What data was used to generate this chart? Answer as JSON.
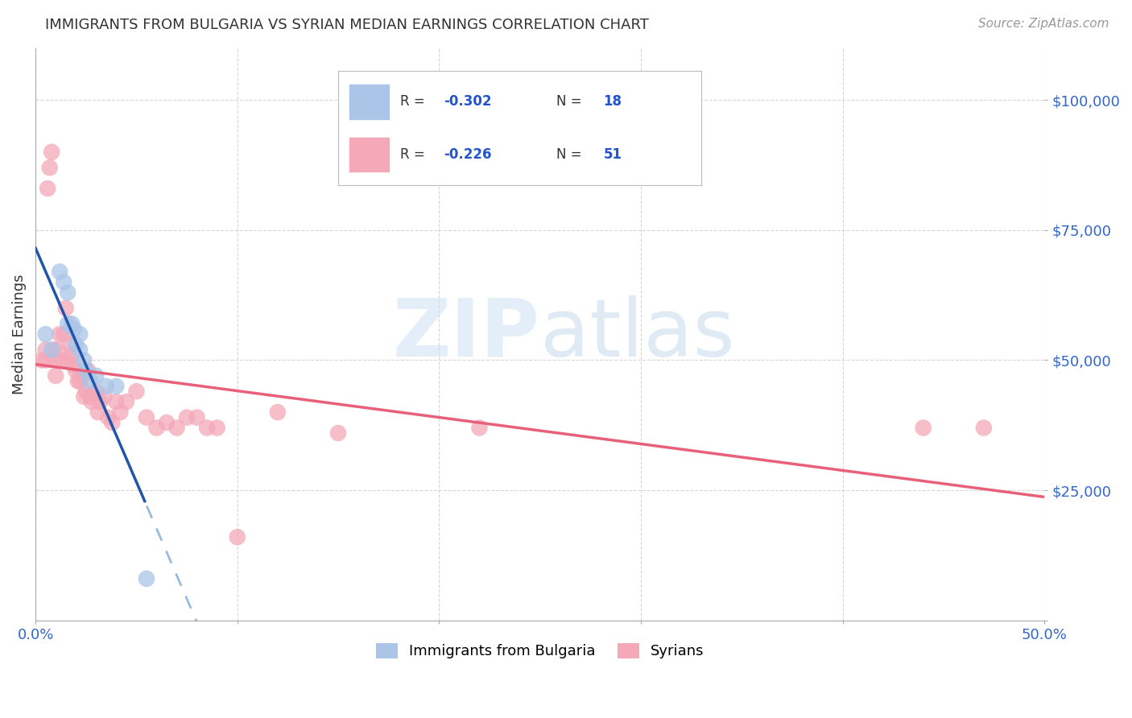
{
  "title": "IMMIGRANTS FROM BULGARIA VS SYRIAN MEDIAN EARNINGS CORRELATION CHART",
  "source": "Source: ZipAtlas.com",
  "ylabel": "Median Earnings",
  "watermark": "ZIPatlas",
  "legend_label_blue": "Immigrants from Bulgaria",
  "legend_label_pink": "Syrians",
  "xlim": [
    0.0,
    0.5
  ],
  "ylim": [
    0,
    110000
  ],
  "yticks": [
    0,
    25000,
    50000,
    75000,
    100000
  ],
  "xticks": [
    0.0,
    0.1,
    0.2,
    0.3,
    0.4,
    0.5
  ],
  "xtick_labels": [
    "0.0%",
    "",
    "",
    "",
    "",
    "50.0%"
  ],
  "blue_color": "#aac5e8",
  "pink_color": "#f4a8b8",
  "blue_line_color": "#2255aa",
  "pink_line_color": "#e8607a",
  "blue_dash_color": "#99bbdd",
  "grid_color": "#cccccc",
  "bg_color": "#ffffff",
  "blue_points_x": [
    0.005,
    0.008,
    0.012,
    0.014,
    0.016,
    0.016,
    0.018,
    0.019,
    0.02,
    0.022,
    0.022,
    0.024,
    0.025,
    0.027,
    0.03,
    0.035,
    0.04,
    0.055
  ],
  "blue_points_y": [
    55000,
    52000,
    67000,
    65000,
    63000,
    57000,
    57000,
    56000,
    53000,
    52000,
    55000,
    50000,
    48000,
    46000,
    47000,
    45000,
    45000,
    8000
  ],
  "pink_points_x": [
    0.003,
    0.005,
    0.005,
    0.006,
    0.007,
    0.008,
    0.009,
    0.01,
    0.01,
    0.011,
    0.012,
    0.013,
    0.014,
    0.015,
    0.016,
    0.017,
    0.018,
    0.019,
    0.02,
    0.021,
    0.022,
    0.023,
    0.024,
    0.025,
    0.026,
    0.027,
    0.028,
    0.03,
    0.031,
    0.032,
    0.034,
    0.036,
    0.038,
    0.04,
    0.042,
    0.045,
    0.05,
    0.055,
    0.06,
    0.065,
    0.07,
    0.075,
    0.08,
    0.085,
    0.09,
    0.1,
    0.12,
    0.15,
    0.22,
    0.44,
    0.47
  ],
  "pink_points_y": [
    50000,
    50000,
    52000,
    83000,
    87000,
    90000,
    52000,
    50000,
    47000,
    52000,
    55000,
    50000,
    55000,
    60000,
    50000,
    53000,
    51000,
    49000,
    48000,
    46000,
    46000,
    47000,
    43000,
    44000,
    48000,
    43000,
    42000,
    44000,
    40000,
    42000,
    43000,
    39000,
    38000,
    42000,
    40000,
    42000,
    44000,
    39000,
    37000,
    38000,
    37000,
    39000,
    39000,
    37000,
    37000,
    16000,
    40000,
    36000,
    37000,
    37000,
    37000
  ]
}
